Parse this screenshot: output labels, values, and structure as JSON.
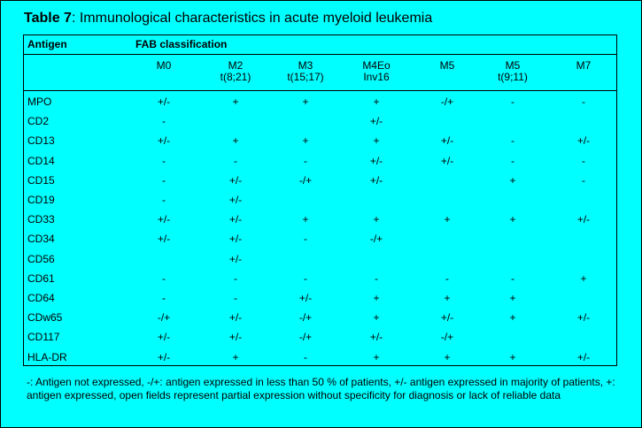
{
  "title": {
    "prefix": "Table 7",
    "text": ": Immunological characteristics in acute myeloid leukemia"
  },
  "header": {
    "antigen": "Antigen",
    "fab": "FAB classification"
  },
  "columns": [
    {
      "name": "M0",
      "sub": ""
    },
    {
      "name": "M2",
      "sub": "t(8;21)"
    },
    {
      "name": "M3",
      "sub": "t(15;17)"
    },
    {
      "name": "M4Eo",
      "sub": "Inv16"
    },
    {
      "name": "M5",
      "sub": ""
    },
    {
      "name": "M5",
      "sub": "t(9;11)"
    },
    {
      "name": "M7",
      "sub": ""
    }
  ],
  "rows": [
    {
      "antigen": "MPO",
      "values": [
        "+/-",
        "+",
        "+",
        "+",
        "-/+",
        "-",
        "-"
      ]
    },
    {
      "antigen": "CD2",
      "values": [
        "-",
        "",
        "",
        "+/-",
        "",
        "",
        ""
      ]
    },
    {
      "antigen": "CD13",
      "values": [
        "+/-",
        "+",
        "+",
        "+",
        "+/-",
        "-",
        "+/-"
      ]
    },
    {
      "antigen": "CD14",
      "values": [
        "-",
        "-",
        "-",
        "+/-",
        "+/-",
        "-",
        "-"
      ]
    },
    {
      "antigen": "CD15",
      "values": [
        "-",
        "+/-",
        "-/+",
        "+/-",
        "",
        "+",
        "-"
      ]
    },
    {
      "antigen": "CD19",
      "values": [
        "-",
        "+/-",
        "",
        "",
        "",
        "",
        ""
      ]
    },
    {
      "antigen": "CD33",
      "values": [
        "+/-",
        "+/-",
        "+",
        "+",
        "+",
        "+",
        "+/-"
      ]
    },
    {
      "antigen": "CD34",
      "values": [
        "+/-",
        "+/-",
        "-",
        "-/+",
        "",
        "",
        ""
      ]
    },
    {
      "antigen": "CD56",
      "values": [
        "",
        "+/-",
        "",
        "",
        "",
        "",
        ""
      ]
    },
    {
      "antigen": "CD61",
      "values": [
        "-",
        "-",
        "-",
        "-",
        "-",
        "-",
        "+"
      ]
    },
    {
      "antigen": "CD64",
      "values": [
        "-",
        "-",
        "+/-",
        "+",
        "+",
        "+",
        ""
      ]
    },
    {
      "antigen": "CDw65",
      "values": [
        "-/+",
        "+/-",
        "-/+",
        "+",
        "+/-",
        "+",
        "+/-"
      ]
    },
    {
      "antigen": "CD117",
      "values": [
        "+/-",
        "+/-",
        "-/+",
        "+/-",
        "-/+",
        "",
        ""
      ]
    },
    {
      "antigen": "HLA-DR",
      "values": [
        "+/-",
        "+",
        "-",
        "+",
        "+",
        "+",
        "+/-"
      ]
    }
  ],
  "footnote": "-: Antigen not expressed, -/+: antigen expressed in less than 50 % of patients, +/- antigen expressed in majority of patients, +: antigen expressed, open fields represent partial expression without specificity for diagnosis or lack of reliable data"
}
